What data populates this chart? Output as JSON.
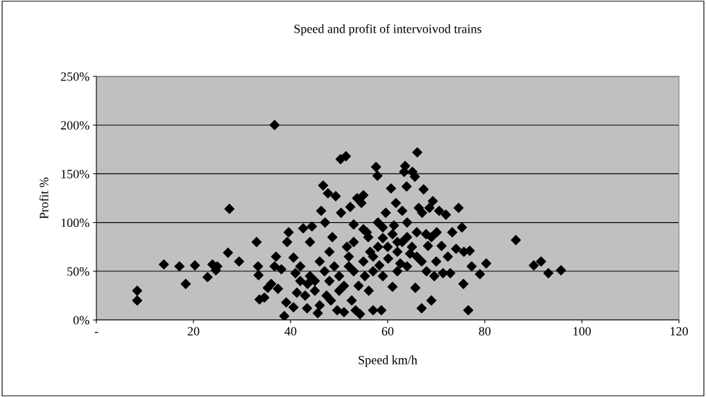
{
  "chart_data": {
    "type": "scatter",
    "title": "Speed and profit of intervoivod trains",
    "xlabel": "Speed km/h",
    "ylabel": "Profit %",
    "x": [
      8.4,
      8.4,
      13.9,
      17.1,
      18.4,
      20.3,
      22.9,
      23.9,
      24.6,
      24.9,
      27.1,
      27.4,
      29.4,
      33,
      33.3,
      33.4,
      33.6,
      34.6,
      35.3,
      36,
      36.7,
      36.7,
      37,
      37.4,
      38.1,
      38.7,
      39.1,
      39.3,
      39.6,
      40.6,
      40.6,
      41,
      41.3,
      42,
      42.6,
      43.4,
      43.5,
      44,
      44.4,
      45,
      45.6,
      46,
      46.3,
      46.7,
      47.1,
      47.4,
      47.7,
      48,
      48.3,
      48.6,
      49.3,
      49.6,
      50.3,
      50.4,
      51,
      51.4,
      51.6,
      52,
      52.3,
      52.6,
      53,
      53.4,
      53.7,
      54.3,
      54.6,
      55,
      55.3,
      55.7,
      56.1,
      56.4,
      57,
      57.6,
      57.9,
      58,
      58.3,
      58.7,
      59,
      59.6,
      60.1,
      60.7,
      61,
      61.3,
      61.7,
      62,
      62.6,
      63,
      63.4,
      63.6,
      63.9,
      64,
      64.6,
      65.1,
      65.6,
      65.7,
      66.1,
      66.4,
      67,
      67.1,
      67.4,
      67.9,
      68.3,
      68.6,
      69,
      69.3,
      69.6,
      70.1,
      70.6,
      71.1,
      71.4,
      72,
      72.4,
      72.9,
      73.3,
      74.1,
      74.6,
      75.3,
      75.6,
      75.7,
      76.6,
      76.9,
      77.3,
      79,
      80.3,
      86.4,
      90.1,
      91.6,
      93.1,
      95.7,
      44,
      45,
      47,
      48,
      50,
      50,
      52,
      53,
      54,
      55,
      56,
      57,
      58,
      59,
      60,
      61,
      62,
      63,
      64,
      65,
      66,
      67,
      68,
      42,
      43,
      46,
      49,
      51,
      53,
      55,
      57,
      59,
      62,
      64,
      66,
      69,
      70
    ],
    "series": [
      {
        "color": "#000000",
        "values": [
          30,
          20,
          57,
          55,
          37,
          56,
          44,
          57,
          51,
          55,
          69,
          114,
          60,
          80,
          55,
          46,
          21,
          23,
          33,
          37,
          200,
          55,
          65,
          32,
          52,
          4,
          18,
          80,
          90,
          64,
          13,
          48,
          28,
          55,
          94,
          12,
          37,
          80,
          96,
          40,
          7,
          60,
          112,
          138,
          100,
          25,
          130,
          70,
          20,
          85,
          127,
          10,
          165,
          110,
          8,
          168,
          75,
          55,
          116,
          20,
          98,
          10,
          125,
          6,
          120,
          128,
          45,
          90,
          30,
          70,
          10,
          157,
          148,
          100,
          56,
          10,
          84,
          110,
          63,
          135,
          34,
          97,
          120,
          80,
          58,
          112,
          152,
          158,
          137,
          85,
          68,
          152,
          147,
          33,
          172,
          115,
          12,
          110,
          134,
          88,
          76,
          115,
          20,
          122,
          45,
          90,
          112,
          76,
          48,
          108,
          65,
          48,
          90,
          73,
          115,
          95,
          37,
          70,
          10,
          71,
          55,
          47,
          58,
          82,
          56,
          60,
          48,
          51,
          45,
          30,
          50,
          40,
          45,
          30,
          65,
          50,
          35,
          60,
          85,
          50,
          75,
          45,
          75,
          88,
          70,
          80,
          55,
          75,
          90,
          60,
          50,
          40,
          25,
          15,
          55,
          35,
          80,
          93,
          65,
          95,
          50,
          100,
          65,
          85,
          60
        ]
      }
    ],
    "xlim": [
      0,
      120
    ],
    "xticks": [
      {
        "value": 0,
        "label": "-"
      },
      20,
      40,
      60,
      80,
      100,
      120
    ],
    "ylim": [
      0,
      250
    ],
    "yticks": [
      {
        "value": 0,
        "label": "0%"
      },
      {
        "value": 50,
        "label": "50%"
      },
      {
        "value": 100,
        "label": "100%"
      },
      {
        "value": 150,
        "label": "150%"
      },
      {
        "value": 200,
        "label": "200%"
      },
      {
        "value": 250,
        "label": "250%"
      }
    ],
    "grid": "y",
    "marker": "diamond"
  }
}
